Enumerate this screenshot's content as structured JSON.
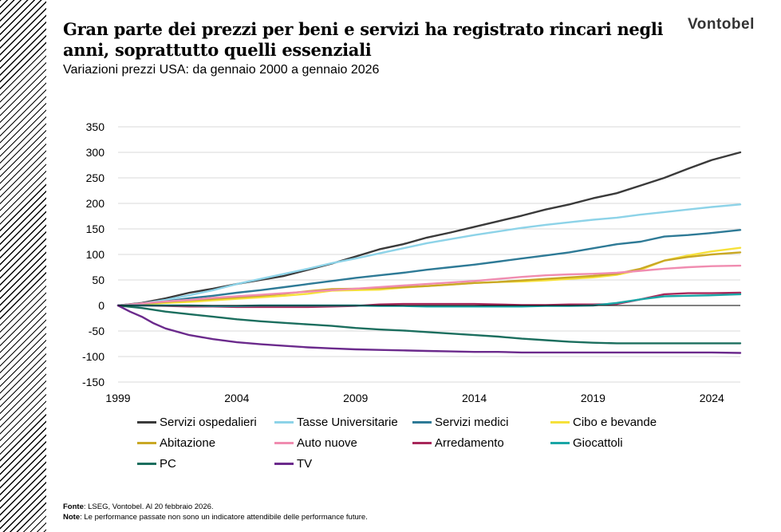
{
  "header": {
    "title": "Gran parte dei prezzi per beni e servizi ha registrato rincari negli anni, soprattutto quelli essenziali",
    "subtitle": "Variazioni prezzi USA: da gennaio 2000 a gennaio 2026",
    "logo_text": "Vontobel"
  },
  "footer": {
    "source_label": "Fonte",
    "source_text": ": LSEG, Vontobel. Al 20 febbraio 2026.",
    "note_label": "Note",
    "note_text": ": Le performance passate non sono un indicatore attendibile delle performance future."
  },
  "chart_data": {
    "type": "line",
    "title": "",
    "xlabel": "",
    "ylabel": "",
    "xlim": [
      1999,
      2025.2
    ],
    "ylim": [
      -150,
      350
    ],
    "xticks": [
      1999,
      2004,
      2009,
      2014,
      2019,
      2024
    ],
    "yticks": [
      -150,
      -100,
      -50,
      0,
      50,
      100,
      150,
      200,
      250,
      300,
      350
    ],
    "grid": "horizontal",
    "legend_position": "bottom",
    "series": [
      {
        "name": "Servizi ospedalieri",
        "color": "#3a3a3a",
        "x": [
          1999,
          2000,
          2001,
          2002,
          2003,
          2004,
          2005,
          2006,
          2007,
          2008,
          2009,
          2010,
          2011,
          2012,
          2013,
          2014,
          2015,
          2016,
          2017,
          2018,
          2019,
          2020,
          2021,
          2022,
          2023,
          2024,
          2025.2
        ],
        "y": [
          0,
          5,
          14,
          25,
          33,
          42,
          50,
          58,
          70,
          82,
          96,
          110,
          120,
          133,
          143,
          154,
          165,
          176,
          188,
          198,
          210,
          220,
          235,
          250,
          268,
          285,
          300
        ]
      },
      {
        "name": "Tasse Universitarie",
        "color": "#8dd3e8",
        "x": [
          1999,
          2000,
          2001,
          2002,
          2003,
          2004,
          2005,
          2006,
          2007,
          2008,
          2009,
          2010,
          2011,
          2012,
          2013,
          2014,
          2015,
          2016,
          2017,
          2018,
          2019,
          2020,
          2021,
          2022,
          2023,
          2024,
          2025.2
        ],
        "y": [
          0,
          4,
          11,
          20,
          30,
          42,
          52,
          62,
          72,
          83,
          92,
          102,
          112,
          122,
          130,
          138,
          145,
          152,
          158,
          163,
          168,
          172,
          178,
          183,
          188,
          193,
          198
        ]
      },
      {
        "name": "Servizi medici",
        "color": "#2e7a96",
        "x": [
          1999,
          2000,
          2001,
          2002,
          2003,
          2004,
          2005,
          2006,
          2007,
          2008,
          2009,
          2010,
          2011,
          2012,
          2013,
          2014,
          2015,
          2016,
          2017,
          2018,
          2019,
          2020,
          2021,
          2022,
          2023,
          2024,
          2025.2
        ],
        "y": [
          0,
          3,
          8,
          14,
          19,
          25,
          30,
          36,
          42,
          48,
          54,
          59,
          64,
          70,
          75,
          80,
          86,
          92,
          98,
          104,
          112,
          120,
          125,
          135,
          138,
          142,
          148
        ]
      },
      {
        "name": "Cibo e bevande",
        "color": "#f6e13a",
        "x": [
          1999,
          2000,
          2001,
          2002,
          2003,
          2004,
          2005,
          2006,
          2007,
          2008,
          2009,
          2010,
          2011,
          2012,
          2013,
          2014,
          2015,
          2016,
          2017,
          2018,
          2019,
          2020,
          2021,
          2022,
          2023,
          2024,
          2025.2
        ],
        "y": [
          0,
          2,
          5,
          7,
          10,
          13,
          16,
          19,
          23,
          29,
          30,
          31,
          35,
          38,
          41,
          44,
          46,
          47,
          49,
          52,
          55,
          60,
          70,
          88,
          98,
          106,
          113
        ]
      },
      {
        "name": "Abitazione",
        "color": "#c9a825",
        "x": [
          1999,
          2000,
          2001,
          2002,
          2003,
          2004,
          2005,
          2006,
          2007,
          2008,
          2009,
          2010,
          2011,
          2012,
          2013,
          2014,
          2015,
          2016,
          2017,
          2018,
          2019,
          2020,
          2021,
          2022,
          2023,
          2024,
          2025.2
        ],
        "y": [
          0,
          3,
          7,
          10,
          13,
          16,
          19,
          23,
          28,
          32,
          33,
          34,
          36,
          38,
          41,
          44,
          46,
          49,
          52,
          55,
          58,
          62,
          72,
          88,
          95,
          100,
          104
        ]
      },
      {
        "name": "Auto nuove",
        "color": "#f08cb0",
        "x": [
          1999,
          2000,
          2001,
          2002,
          2003,
          2004,
          2005,
          2006,
          2007,
          2008,
          2009,
          2010,
          2011,
          2012,
          2013,
          2014,
          2015,
          2016,
          2017,
          2018,
          2019,
          2020,
          2021,
          2022,
          2023,
          2024,
          2025.2
        ],
        "y": [
          0,
          4,
          8,
          11,
          15,
          18,
          21,
          24,
          27,
          30,
          33,
          36,
          39,
          42,
          45,
          48,
          52,
          56,
          59,
          61,
          62,
          64,
          68,
          72,
          75,
          77,
          78
        ]
      },
      {
        "name": "Arredamento",
        "color": "#a8285a",
        "x": [
          1999,
          2000,
          2001,
          2002,
          2003,
          2004,
          2005,
          2006,
          2007,
          2008,
          2009,
          2010,
          2011,
          2012,
          2013,
          2014,
          2015,
          2016,
          2017,
          2018,
          2019,
          2020,
          2021,
          2022,
          2023,
          2024,
          2025.2
        ],
        "y": [
          0,
          0,
          -1,
          -2,
          -2,
          -3,
          -3,
          -3,
          -3,
          -2,
          -1,
          2,
          3,
          3,
          3,
          3,
          2,
          1,
          1,
          2,
          2,
          3,
          12,
          22,
          24,
          24,
          25
        ]
      },
      {
        "name": "Giocattoli",
        "color": "#1aa6a6",
        "x": [
          1999,
          2000,
          2001,
          2002,
          2003,
          2004,
          2005,
          2006,
          2007,
          2008,
          2009,
          2010,
          2011,
          2012,
          2013,
          2014,
          2015,
          2016,
          2017,
          2018,
          2019,
          2020,
          2021,
          2022,
          2023,
          2024,
          2025.2
        ],
        "y": [
          0,
          0,
          0,
          0,
          -1,
          -1,
          0,
          0,
          0,
          0,
          0,
          -1,
          -1,
          -2,
          -2,
          -2,
          -2,
          -2,
          -1,
          -1,
          0,
          5,
          12,
          18,
          19,
          20,
          22
        ]
      },
      {
        "name": "PC",
        "color": "#1b6e5e",
        "x": [
          1999,
          2000,
          2001,
          2002,
          2003,
          2004,
          2005,
          2006,
          2007,
          2008,
          2009,
          2010,
          2011,
          2012,
          2013,
          2014,
          2015,
          2016,
          2017,
          2018,
          2019,
          2020,
          2021,
          2022,
          2023,
          2024,
          2025.2
        ],
        "y": [
          0,
          -5,
          -12,
          -17,
          -22,
          -27,
          -31,
          -34,
          -37,
          -40,
          -44,
          -47,
          -49,
          -52,
          -55,
          -58,
          -61,
          -65,
          -68,
          -71,
          -73,
          -74,
          -74,
          -74,
          -74,
          -74,
          -74
        ]
      },
      {
        "name": "TV",
        "color": "#6b2a8c",
        "x": [
          1999,
          1999.5,
          2000,
          2000.5,
          2001,
          2002,
          2003,
          2004,
          2005,
          2006,
          2007,
          2008,
          2009,
          2010,
          2011,
          2012,
          2013,
          2014,
          2015,
          2016,
          2017,
          2018,
          2019,
          2020,
          2021,
          2022,
          2023,
          2024,
          2025.2
        ],
        "y": [
          0,
          -12,
          -22,
          -35,
          -45,
          -58,
          -66,
          -72,
          -76,
          -79,
          -82,
          -84,
          -86,
          -87,
          -88,
          -89,
          -90,
          -91,
          -91,
          -92,
          -92,
          -92,
          -92,
          -92,
          -92,
          -92,
          -92,
          -92,
          -93
        ]
      }
    ]
  }
}
